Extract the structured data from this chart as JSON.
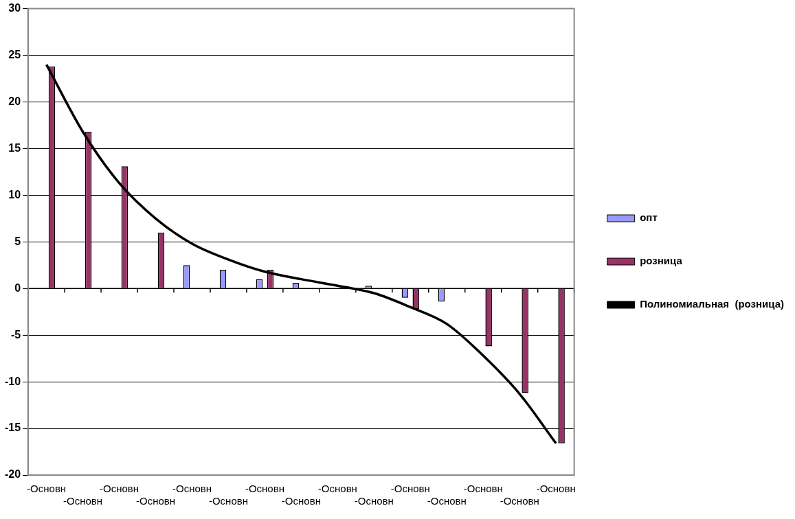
{
  "chart_data": {
    "type": "bar",
    "categories": [
      "-Основн",
      "-Основн",
      "-Основн",
      "-Основн",
      "-Основн",
      "-Основн",
      "-Основн",
      "-Основн",
      "-Основн",
      "-Основн",
      "-Основн",
      "-Основн",
      "-Основн",
      "-Основн",
      "-Основн"
    ],
    "series": [
      {
        "name": "опт",
        "color": "#9999ff",
        "values": [
          null,
          null,
          null,
          null,
          2.5,
          2.0,
          1.0,
          0.6,
          null,
          0.3,
          -1.0,
          -1.4,
          null,
          null,
          null
        ]
      },
      {
        "name": "розница",
        "color": "#993366",
        "values": [
          23.8,
          16.8,
          13.1,
          6.0,
          null,
          null,
          2.0,
          null,
          null,
          null,
          -2.2,
          null,
          -6.2,
          -11.2,
          -16.6
        ]
      },
      {
        "name": "Полиномиальная  (розница)",
        "type": "line",
        "color": "#000000",
        "values": [
          24.0,
          16.8,
          11.3,
          7.5,
          4.8,
          3.1,
          1.8,
          1.0,
          0.3,
          -0.5,
          -2.0,
          -3.8,
          -7.2,
          -11.3,
          -16.6
        ]
      }
    ],
    "ylim": [
      -20,
      30
    ],
    "yticks": [
      -20,
      -15,
      -10,
      -5,
      0,
      5,
      10,
      15,
      20,
      25,
      30
    ],
    "grid": "y",
    "legend": "right",
    "marker": "none"
  }
}
